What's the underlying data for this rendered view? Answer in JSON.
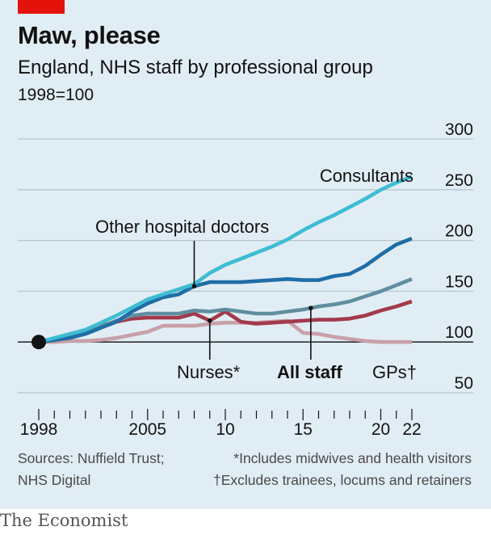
{
  "header": {
    "title": "Maw, please",
    "subtitle": "England, NHS staff by professional group",
    "unit": "1998=100"
  },
  "footer": {
    "sources_line1": "Sources: Nuffield Trust;",
    "sources_line2": "NHS Digital",
    "note1": "*Includes midwives and health visitors",
    "note2": "†Excludes trainees, locums and retainers"
  },
  "brand": "The Economist",
  "colors": {
    "background": "#e1edf4",
    "brand_red": "#e3120b",
    "consultants": "#3ebcd2",
    "other_hospital_doctors": "#1f6ea6",
    "all_staff": "#5f8ea0",
    "nurses": "#a3394b",
    "gps": "#c8a0a8"
  },
  "chart_data": {
    "type": "line",
    "title": "Maw, please",
    "subtitle": "England, NHS staff by professional group",
    "ylabel": "1998=100",
    "ylim": [
      50,
      300
    ],
    "yticks": [
      50,
      100,
      150,
      200,
      250,
      300
    ],
    "xlim": [
      1998,
      2022
    ],
    "xticks": [
      {
        "value": 1998,
        "label": "1998"
      },
      {
        "value": 2005,
        "label": "2005"
      },
      {
        "value": 2010,
        "label": "10"
      },
      {
        "value": 2015,
        "label": "15"
      },
      {
        "value": 2020,
        "label": "20"
      },
      {
        "value": 2022,
        "label": "22"
      }
    ],
    "grid": true,
    "x": [
      1998,
      1999,
      2000,
      2001,
      2002,
      2003,
      2004,
      2005,
      2006,
      2007,
      2008,
      2009,
      2010,
      2011,
      2012,
      2013,
      2014,
      2015,
      2016,
      2017,
      2018,
      2019,
      2020,
      2021,
      2022
    ],
    "series": [
      {
        "name": "Consultants",
        "key": "consultants",
        "values": [
          100,
          104,
          108,
          112,
          119,
          126,
          134,
          142,
          147,
          152,
          157,
          168,
          176,
          182,
          188,
          194,
          201,
          210,
          218,
          225,
          233,
          241,
          250,
          257,
          263
        ]
      },
      {
        "name": "Other hospital doctors",
        "key": "other_hospital_doctors",
        "values": [
          100,
          102,
          104,
          108,
          114,
          120,
          130,
          138,
          144,
          147,
          155,
          159,
          159,
          159,
          160,
          161,
          162,
          161,
          161,
          165,
          167,
          175,
          186,
          196,
          202
        ]
      },
      {
        "name": "All staff",
        "key": "all_staff",
        "values": [
          100,
          102,
          105,
          109,
          115,
          121,
          126,
          128,
          128,
          128,
          131,
          130,
          132,
          130,
          128,
          128,
          130,
          132,
          135,
          137,
          140,
          145,
          150,
          156,
          162
        ]
      },
      {
        "name": "Nurses*",
        "key": "nurses",
        "values": [
          100,
          102,
          105,
          110,
          116,
          120,
          123,
          124,
          124,
          124,
          128,
          121,
          130,
          120,
          118,
          119,
          120,
          121,
          122,
          122,
          123,
          126,
          131,
          135,
          140
        ]
      },
      {
        "name": "GPs†",
        "key": "gps",
        "values": [
          100,
          100,
          101,
          101,
          102,
          104,
          107,
          110,
          116,
          116,
          116,
          118,
          119,
          119,
          119,
          120,
          121,
          109,
          108,
          105,
          103,
          101,
          100,
          100,
          100
        ]
      }
    ],
    "labels": [
      {
        "text": "Consultants",
        "series": "consultants"
      },
      {
        "text": "Other hospital doctors",
        "series": "other_hospital_doctors",
        "pointer_x": 2008
      },
      {
        "text": "Nurses*",
        "series": "nurses",
        "pointer_x": 2009
      },
      {
        "text": "All staff",
        "series": "all_staff",
        "pointer_x": 2015.5
      },
      {
        "text": "GPs†",
        "series": "gps"
      }
    ]
  }
}
